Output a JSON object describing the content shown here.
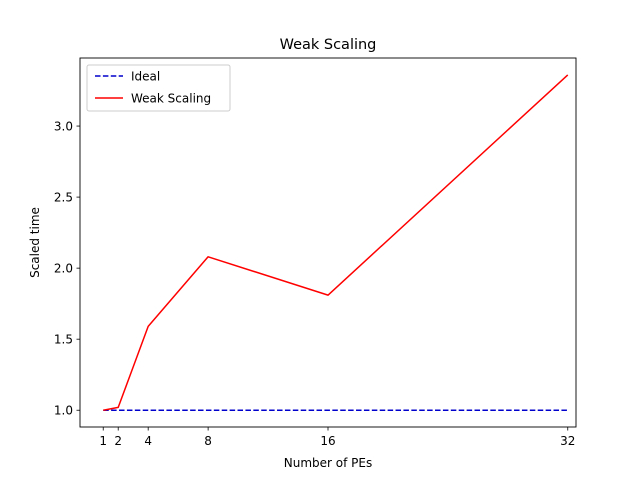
{
  "chart_data": {
    "type": "line",
    "title": "Weak Scaling",
    "xlabel": "Number of PEs",
    "ylabel": "Scaled time",
    "x": [
      1,
      2,
      4,
      8,
      16,
      32
    ],
    "xticks": [
      "1",
      "2",
      "4",
      "8",
      "16",
      "32"
    ],
    "yticks": [
      "1.0",
      "1.5",
      "2.0",
      "2.5",
      "3.0"
    ],
    "ytick_values": [
      1.0,
      1.5,
      2.0,
      2.5,
      3.0
    ],
    "xlim": [
      -0.55,
      32.55
    ],
    "ylim": [
      0.882,
      3.479
    ],
    "grid": false,
    "legend_position": "top-left",
    "series": [
      {
        "name": "Ideal",
        "color": "#0000cc",
        "style": "dashed",
        "values": [
          1.0,
          1.0,
          1.0,
          1.0,
          1.0,
          1.0
        ]
      },
      {
        "name": "Weak Scaling",
        "color": "#ff0000",
        "style": "solid",
        "values": [
          1.0,
          1.02,
          1.59,
          2.08,
          1.81,
          3.36
        ]
      }
    ]
  }
}
